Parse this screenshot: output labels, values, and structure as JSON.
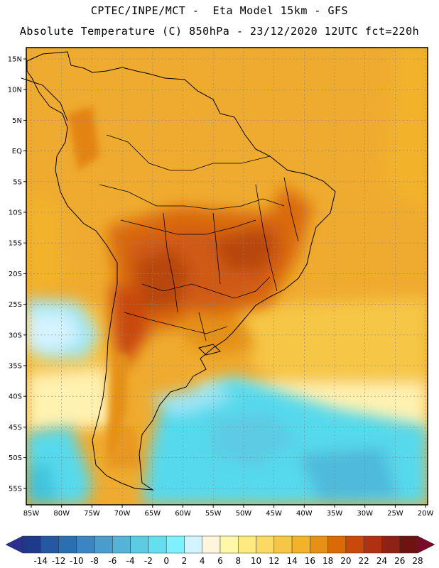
{
  "header": {
    "line1": "CPTEC/INPE/MCT -  Eta Model 15km - GFS",
    "line2": "Absolute Temperature (C) 850hPa - 23/12/2020 12UTC fct=220h"
  },
  "axes": {
    "lat_labels": [
      "15N",
      "10N",
      "5N",
      "EQ",
      "5S",
      "10S",
      "15S",
      "20S",
      "25S",
      "30S",
      "35S",
      "40S",
      "45S",
      "50S",
      "55S"
    ],
    "lon_labels": [
      "85W",
      "80W",
      "75W",
      "70W",
      "65W",
      "60W",
      "55W",
      "50W",
      "45W",
      "40W",
      "35W",
      "30W",
      "25W",
      "20W"
    ]
  },
  "colorbar": {
    "labels": [
      "-14",
      "-12",
      "-10",
      "-8",
      "-6",
      "-4",
      "-2",
      "0",
      "2",
      "4",
      "6",
      "8",
      "10",
      "12",
      "14",
      "16",
      "18",
      "20",
      "22",
      "24",
      "26",
      "28"
    ],
    "colors": [
      "#1f3a8a",
      "#2458a3",
      "#2b6fb3",
      "#3b86c2",
      "#4a9ccc",
      "#55b3d8",
      "#5ccbe3",
      "#66def0",
      "#7ef0ff",
      "#d3f3ff",
      "#fff5dc",
      "#fff7a8",
      "#ffe981",
      "#fcd964",
      "#f6c647",
      "#f2b22a",
      "#e59017",
      "#da6a07",
      "#c9490a",
      "#b03111",
      "#8e2214",
      "#6e1410"
    ]
  },
  "map_colors": {
    "land_outline": "#000000",
    "grid": "#888888",
    "base": "#efab2f",
    "warm_core": "#cf5a16",
    "hot_core": "#b8470d",
    "cold_ocean": "#56d9ec",
    "cool_ocean": "#9fe6f5",
    "mild": "#fff1b0"
  }
}
